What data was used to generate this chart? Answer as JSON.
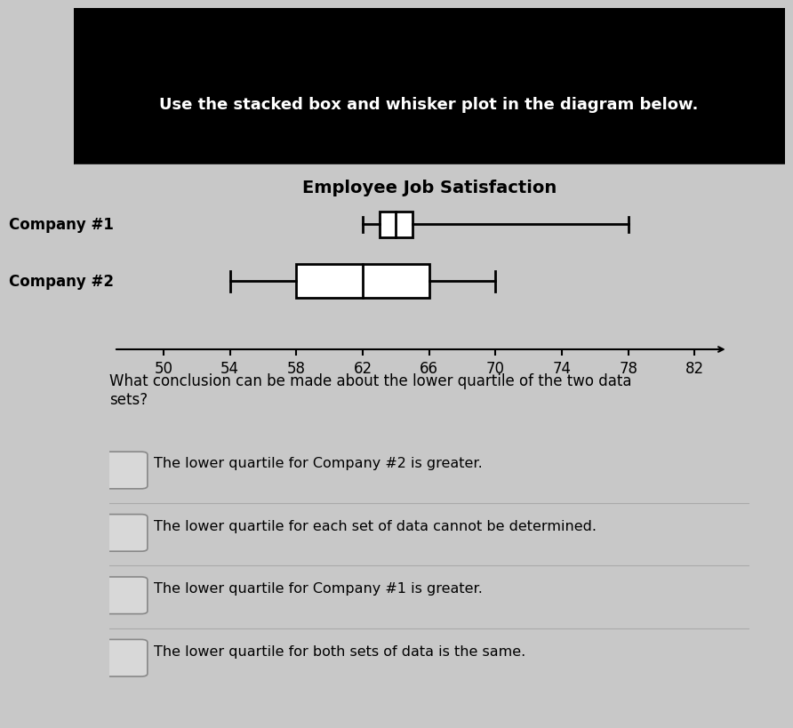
{
  "title": "Employee Job Satisfaction",
  "header": "Use the stacked box and whisker plot in the diagram below.",
  "companies": [
    "Company #1",
    "Company #2"
  ],
  "company1": {
    "min": 62,
    "q1": 63,
    "median": 64,
    "q3": 65,
    "max": 78
  },
  "company2": {
    "min": 54,
    "q1": 58,
    "median": 62,
    "q3": 66,
    "max": 70
  },
  "axis_min": 48,
  "axis_max": 84,
  "ticks": [
    50,
    54,
    58,
    62,
    66,
    70,
    74,
    78,
    82
  ],
  "question": "What conclusion can be made about the lower quartile of the two data\nsets?",
  "options": [
    "The lower quartile for Company #2 is greater.",
    "The lower quartile for each set of data cannot be determined.",
    "The lower quartile for Company #1 is greater.",
    "The lower quartile for both sets of data is the same."
  ],
  "bg_color": "#c8c8c8",
  "box_color": "#ffffff",
  "text_color": "#000000",
  "box_edge_color": "#000000"
}
